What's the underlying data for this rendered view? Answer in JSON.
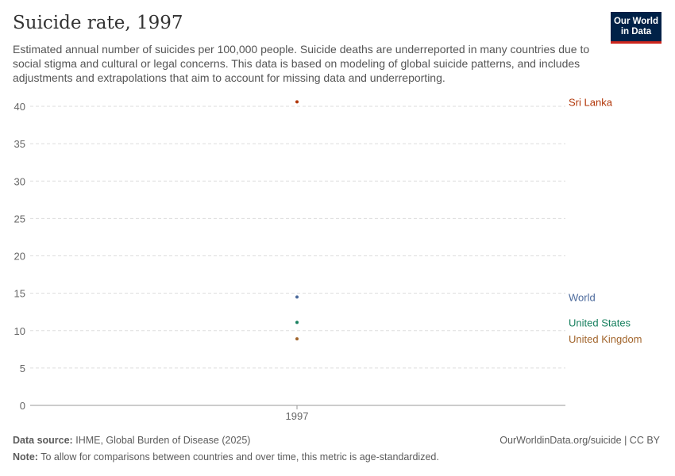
{
  "header": {
    "title": "Suicide rate, 1997",
    "subtitle": "Estimated annual number of suicides per 100,000 people. Suicide deaths are underreported in many countries due to social stigma and cultural or legal concerns. This data is based on modeling of global suicide patterns, and includes adjustments and extrapolations that aim to account for missing data and underreporting.",
    "logo": "Our World in Data"
  },
  "chart_data": {
    "type": "scatter",
    "title": "Suicide rate, 1997",
    "x_categories": [
      "1997"
    ],
    "ylim": [
      0,
      40
    ],
    "yticks": [
      0,
      5,
      10,
      15,
      20,
      25,
      30,
      35,
      40
    ],
    "grid": true,
    "legend": "right, labels at end",
    "series": [
      {
        "name": "Sri Lanka",
        "x": "1997",
        "value": 40.6,
        "color": "#b13507"
      },
      {
        "name": "World",
        "x": "1997",
        "value": 14.5,
        "color": "#4c6a9c"
      },
      {
        "name": "United States",
        "x": "1997",
        "value": 11.1,
        "color": "#18805f"
      },
      {
        "name": "United Kingdom",
        "x": "1997",
        "value": 8.9,
        "color": "#a2652c"
      }
    ]
  },
  "footer": {
    "source_label": "Data source:",
    "source": "IHME, Global Burden of Disease (2025)",
    "url": "OurWorldinData.org/suicide | CC BY",
    "note_label": "Note:",
    "note": "To allow for comparisons between countries and over time, this metric is age-standardized."
  }
}
